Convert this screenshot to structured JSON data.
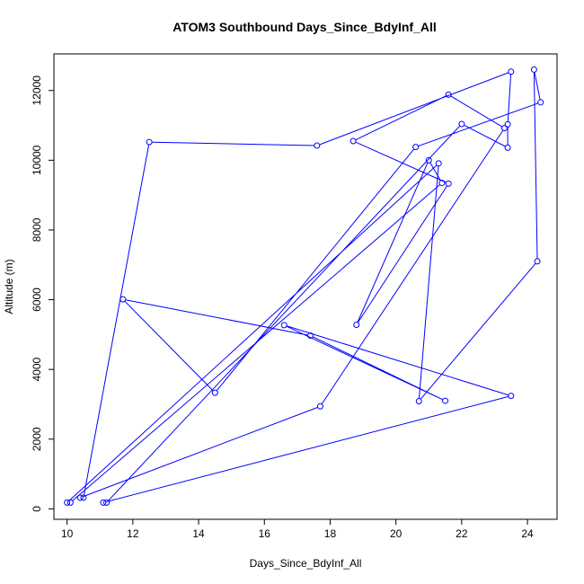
{
  "chart_data": {
    "type": "line",
    "title": "ATOM3 Southbound Days_Since_BdyInf_All",
    "xlabel": "Days_Since_BdyInf_All",
    "ylabel": "Altitude (m)",
    "xlim": [
      9.6,
      24.9
    ],
    "ylim": [
      -300,
      13050
    ],
    "xticks": [
      10,
      12,
      14,
      16,
      18,
      20,
      22,
      24
    ],
    "yticks": [
      0,
      2000,
      4000,
      6000,
      8000,
      10000,
      12000
    ],
    "xtick_labels": [
      "10",
      "12",
      "14",
      "16",
      "18",
      "20",
      "22",
      "24"
    ],
    "ytick_labels": [
      "0",
      "2000",
      "4000",
      "6000",
      "8000",
      "10000",
      "12000"
    ],
    "grid": false,
    "color": "#0000ff",
    "marker": "open-circle",
    "series": [
      {
        "x": [
          10.5,
          12.5,
          17.6,
          23.5,
          23.4,
          23.4,
          22.0,
          11.2,
          11.1,
          23.5,
          16.6,
          21.5,
          17.4,
          11.7,
          14.5,
          20.6,
          24.4,
          24.2,
          24.3,
          20.7,
          21.3,
          10.0,
          10.1,
          21.4,
          21.0,
          18.8,
          21.6,
          18.7,
          21.6,
          23.3,
          17.7,
          10.4
        ],
        "y": [
          320,
          10520,
          10420,
          12540,
          11030,
          10360,
          11040,
          180,
          180,
          3240,
          5270,
          3100,
          4970,
          6010,
          3330,
          10380,
          11660,
          12600,
          7100,
          3090,
          9910,
          180,
          180,
          9350,
          10000,
          5280,
          9330,
          10550,
          11880,
          10920,
          2940,
          320
        ]
      }
    ]
  }
}
